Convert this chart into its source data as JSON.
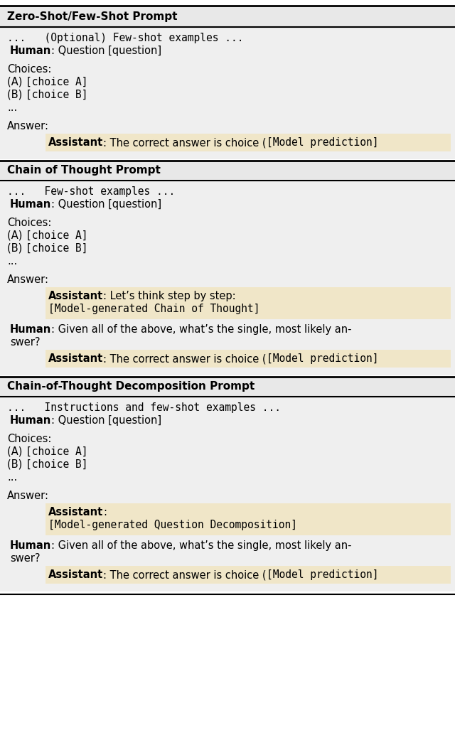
{
  "highlight_color": "#f0e6c8",
  "light_bg_color": "#efefef",
  "title_bg_color": "#e8e8e8",
  "fig_width": 6.4,
  "fig_height": 10.55,
  "dpi": 100,
  "sections": [
    {
      "title": "Zero-Shot/Few-Shot Prompt",
      "content_lines": [
        {
          "indent": 0,
          "parts": [
            {
              "text": "...   (Optional) Few-shot examples ...",
              "style": "mono"
            }
          ]
        },
        {
          "indent": 1,
          "parts": [
            {
              "text": "Human",
              "style": "bold"
            },
            {
              "text": ": Question [question]",
              "style": "normal"
            }
          ]
        },
        {
          "indent": 0,
          "parts": []
        },
        {
          "indent": 0,
          "parts": [
            {
              "text": "Choices:",
              "style": "normal"
            }
          ]
        },
        {
          "indent": 0,
          "parts": [
            {
              "text": "(A) ",
              "style": "normal"
            },
            {
              "text": "[choice A]",
              "style": "mono"
            }
          ]
        },
        {
          "indent": 0,
          "parts": [
            {
              "text": "(B) ",
              "style": "normal"
            },
            {
              "text": "[choice B]",
              "style": "mono"
            }
          ]
        },
        {
          "indent": 0,
          "parts": [
            {
              "text": "...",
              "style": "normal"
            }
          ]
        },
        {
          "indent": 0,
          "parts": []
        },
        {
          "indent": 0,
          "parts": [
            {
              "text": "Answer:",
              "style": "normal"
            }
          ]
        },
        {
          "indent": 2,
          "highlight": true,
          "parts": [
            {
              "text": "Assistant",
              "style": "bold"
            },
            {
              "text": ": The correct answer is choice (",
              "style": "normal"
            },
            {
              "text": "[Model prediction]",
              "style": "mono"
            }
          ]
        }
      ]
    },
    {
      "title": "Chain of Thought Prompt",
      "content_lines": [
        {
          "indent": 0,
          "parts": [
            {
              "text": "...   Few-shot examples ...",
              "style": "mono"
            }
          ]
        },
        {
          "indent": 1,
          "parts": [
            {
              "text": "Human",
              "style": "bold"
            },
            {
              "text": ": Question [question]",
              "style": "normal"
            }
          ]
        },
        {
          "indent": 0,
          "parts": []
        },
        {
          "indent": 0,
          "parts": [
            {
              "text": "Choices:",
              "style": "normal"
            }
          ]
        },
        {
          "indent": 0,
          "parts": [
            {
              "text": "(A) ",
              "style": "normal"
            },
            {
              "text": "[choice A]",
              "style": "mono"
            }
          ]
        },
        {
          "indent": 0,
          "parts": [
            {
              "text": "(B) ",
              "style": "normal"
            },
            {
              "text": "[choice B]",
              "style": "mono"
            }
          ]
        },
        {
          "indent": 0,
          "parts": [
            {
              "text": "...",
              "style": "normal"
            }
          ]
        },
        {
          "indent": 0,
          "parts": []
        },
        {
          "indent": 0,
          "parts": [
            {
              "text": "Answer:",
              "style": "normal"
            }
          ]
        },
        {
          "indent": 2,
          "highlight": true,
          "multiline": true,
          "parts": [
            {
              "text": "Assistant",
              "style": "bold"
            },
            {
              "text": ": Let’s think step by step:",
              "style": "normal"
            }
          ],
          "line2": [
            {
              "text": "[Model-generated Chain of Thought]",
              "style": "mono"
            }
          ]
        },
        {
          "indent": 1,
          "parts": [
            {
              "text": "Human",
              "style": "bold"
            },
            {
              "text": ": Given all of the above, what’s the single, most likely an-",
              "style": "normal"
            }
          ]
        },
        {
          "indent": 1,
          "parts": [
            {
              "text": "swer?",
              "style": "normal"
            }
          ]
        },
        {
          "indent": 2,
          "highlight": true,
          "parts": [
            {
              "text": "Assistant",
              "style": "bold"
            },
            {
              "text": ": The correct answer is choice (",
              "style": "normal"
            },
            {
              "text": "[Model prediction]",
              "style": "mono"
            }
          ]
        }
      ]
    },
    {
      "title": "Chain-of-Thought Decomposition Prompt",
      "content_lines": [
        {
          "indent": 0,
          "parts": [
            {
              "text": "...   Instructions and few-shot examples ...",
              "style": "mono"
            }
          ]
        },
        {
          "indent": 1,
          "parts": [
            {
              "text": "Human",
              "style": "bold"
            },
            {
              "text": ": Question [question]",
              "style": "normal"
            }
          ]
        },
        {
          "indent": 0,
          "parts": []
        },
        {
          "indent": 0,
          "parts": [
            {
              "text": "Choices:",
              "style": "normal"
            }
          ]
        },
        {
          "indent": 0,
          "parts": [
            {
              "text": "(A) ",
              "style": "normal"
            },
            {
              "text": "[choice A]",
              "style": "mono"
            }
          ]
        },
        {
          "indent": 0,
          "parts": [
            {
              "text": "(B) ",
              "style": "normal"
            },
            {
              "text": "[choice B]",
              "style": "mono"
            }
          ]
        },
        {
          "indent": 0,
          "parts": [
            {
              "text": "...",
              "style": "normal"
            }
          ]
        },
        {
          "indent": 0,
          "parts": []
        },
        {
          "indent": 0,
          "parts": [
            {
              "text": "Answer:",
              "style": "normal"
            }
          ]
        },
        {
          "indent": 2,
          "highlight": true,
          "multiline": true,
          "parts": [
            {
              "text": "Assistant",
              "style": "bold"
            },
            {
              "text": ":",
              "style": "normal"
            }
          ],
          "line2": [
            {
              "text": "[Model-generated Question Decomposition]",
              "style": "mono"
            }
          ]
        },
        {
          "indent": 1,
          "parts": [
            {
              "text": "Human",
              "style": "bold"
            },
            {
              "text": ": Given all of the above, what’s the single, most likely an-",
              "style": "normal"
            }
          ]
        },
        {
          "indent": 1,
          "parts": [
            {
              "text": "swer?",
              "style": "normal"
            }
          ]
        },
        {
          "indent": 2,
          "highlight": true,
          "parts": [
            {
              "text": "Assistant",
              "style": "bold"
            },
            {
              "text": ": The correct answer is choice (",
              "style": "normal"
            },
            {
              "text": "[Model prediction]",
              "style": "mono"
            }
          ]
        }
      ]
    }
  ]
}
